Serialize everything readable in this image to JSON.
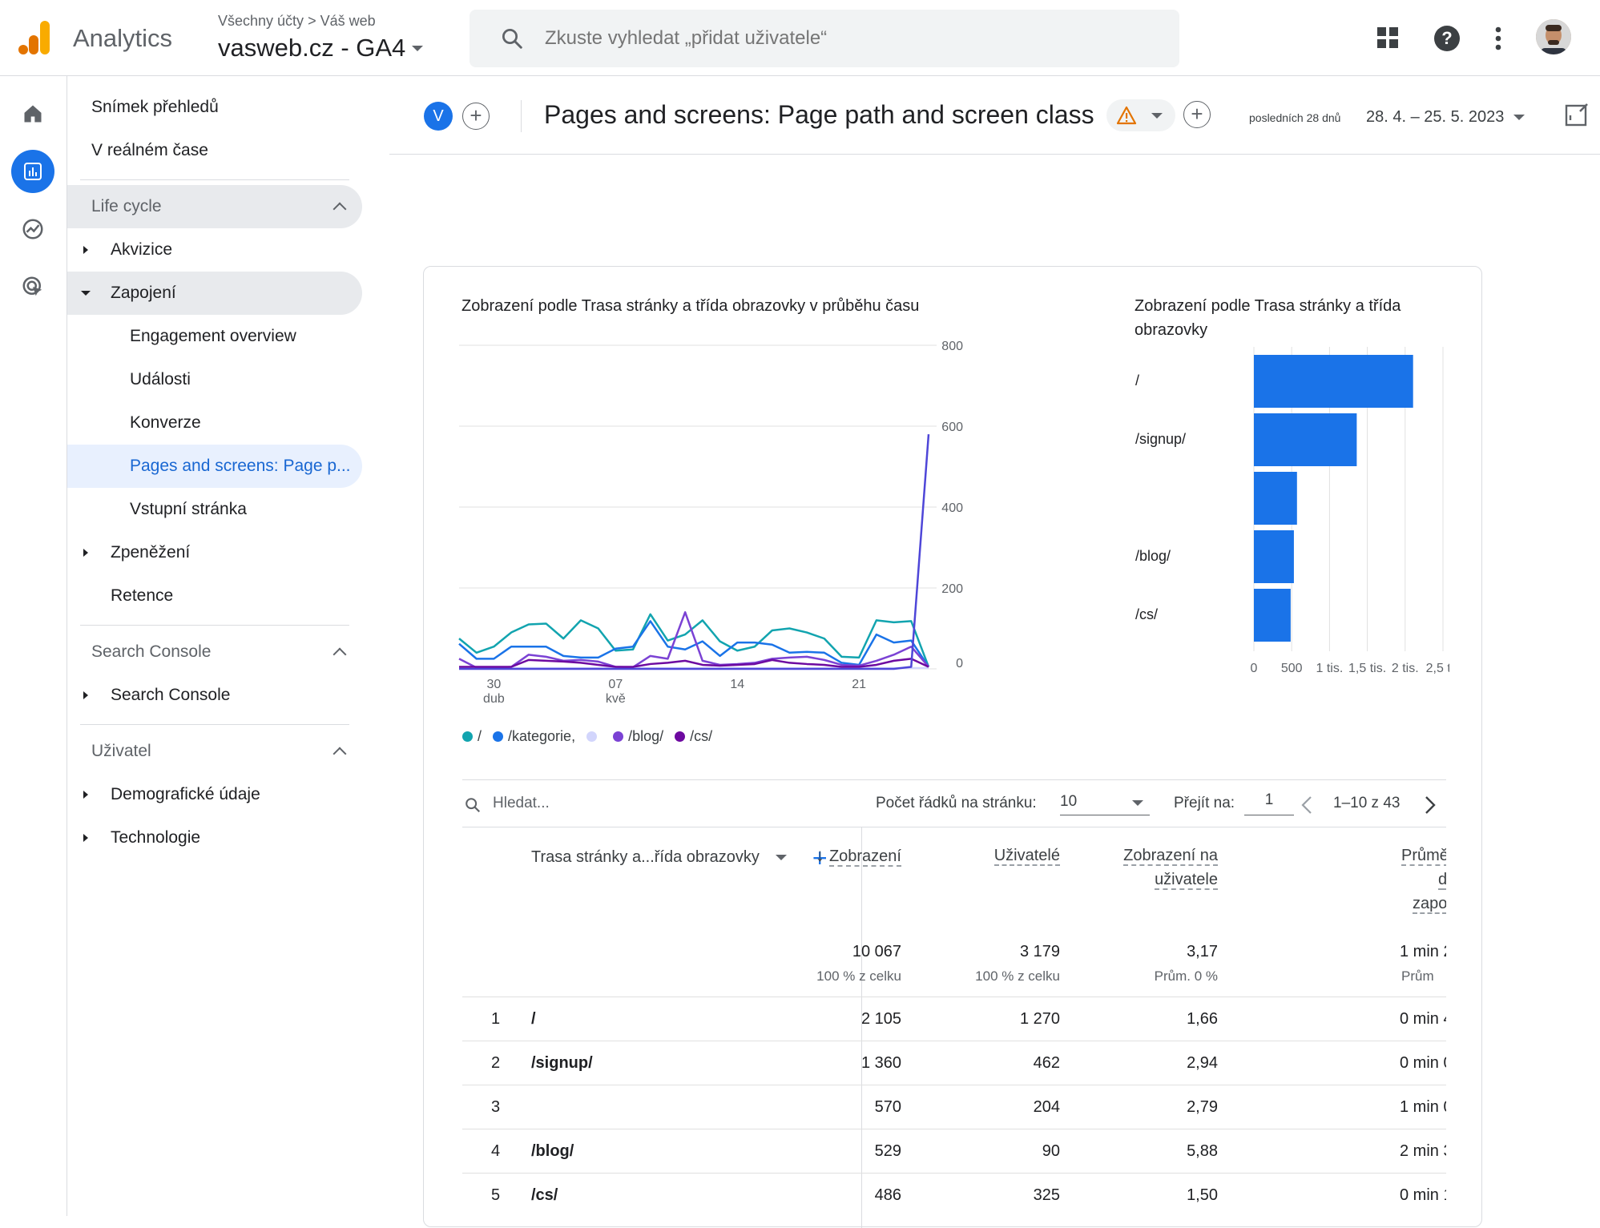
{
  "app": {
    "name": "Analytics",
    "breadcrumb_accounts": "Všechny účty",
    "breadcrumb_site": "Váš web",
    "property": "vasweb.cz - GA4",
    "search_placeholder": "Zkuste vyhledat „přidat uživatele“"
  },
  "icons": {
    "apps": "apps-grid-icon",
    "help": "help-icon",
    "more": "more-vert-icon",
    "home": "home-icon",
    "reports": "bar-chart-icon",
    "explore": "explore-icon",
    "advertising": "advertising-icon"
  },
  "colors": {
    "accent": "#1a73e8",
    "logo_orange": "#f9ab00",
    "logo_dark": "#e37400",
    "warning": "#e37400"
  },
  "nav": {
    "snapshot": "Snímek přehledů",
    "realtime": "V reálném čase",
    "lifecycle": "Life cycle",
    "acquisition": "Akvizice",
    "engagement": "Zapojení",
    "engagement_overview": "Engagement overview",
    "events": "Události",
    "conversions": "Konverze",
    "pages_screens": "Pages and screens: Page p...",
    "landing": "Vstupní stránka",
    "monetization": "Zpeněžení",
    "retention": "Retence",
    "search_console_section": "Search Console",
    "search_console": "Search Console",
    "user_section": "Uživatel",
    "demographics": "Demografické údaje",
    "tech": "Technologie"
  },
  "header": {
    "comparison_chip": "V",
    "title": "Pages and screens: Page path and screen class",
    "date_label": "posledních 28 dnů",
    "date_range": "28. 4. – 25. 5. 2023"
  },
  "line_chart": {
    "title": "Zobrazení podle Trasa stránky a třída obrazovky v průběhu času",
    "y_ticks": [
      "800",
      "600",
      "400",
      "200",
      "0"
    ],
    "x_ticks": [
      {
        "day": "30",
        "month": "dub"
      },
      {
        "day": "07",
        "month": "kvě"
      },
      {
        "day": "14",
        "month": ""
      },
      {
        "day": "21",
        "month": ""
      }
    ],
    "legend": [
      {
        "label": "/",
        "color": "#12a4af"
      },
      {
        "label": "/kategorie,",
        "color": "#1a73e8"
      },
      {
        "label": "",
        "color": "#d2d5fc"
      },
      {
        "label": "/blog/",
        "color": "#7b42d4"
      },
      {
        "label": "/cs/",
        "color": "#6d09a0"
      }
    ]
  },
  "bar_chart": {
    "title": "Zobrazení podle Trasa stránky a třída obrazovky",
    "x_ticks": [
      "0",
      "500",
      "1 tis.",
      "1,5 tis.",
      "2 tis.",
      "2,5 tis"
    ],
    "row_labels": [
      "/",
      "/signup/",
      "",
      "/blog/",
      "/cs/"
    ]
  },
  "chart_data": [
    {
      "type": "line",
      "title": "Zobrazení podle Trasa stránky a třída obrazovky v průběhu času",
      "x": [
        "2023-04-28",
        "2023-04-29",
        "2023-04-30",
        "2023-05-01",
        "2023-05-02",
        "2023-05-03",
        "2023-05-04",
        "2023-05-05",
        "2023-05-06",
        "2023-05-07",
        "2023-05-08",
        "2023-05-09",
        "2023-05-10",
        "2023-05-11",
        "2023-05-12",
        "2023-05-13",
        "2023-05-14",
        "2023-05-15",
        "2023-05-16",
        "2023-05-17",
        "2023-05-18",
        "2023-05-19",
        "2023-05-20",
        "2023-05-21",
        "2023-05-22",
        "2023-05-23",
        "2023-05-24",
        "2023-05-25"
      ],
      "ylim": [
        0,
        800
      ],
      "series": [
        {
          "name": "/",
          "values": [
            75,
            40,
            55,
            90,
            110,
            112,
            75,
            120,
            100,
            45,
            48,
            135,
            70,
            85,
            120,
            68,
            45,
            55,
            95,
            100,
            90,
            75,
            30,
            28,
            120,
            115,
            118,
            5
          ]
        },
        {
          "name": "/kategorie,",
          "values": [
            62,
            25,
            25,
            55,
            55,
            55,
            32,
            28,
            28,
            50,
            55,
            118,
            55,
            48,
            68,
            32,
            65,
            65,
            60,
            40,
            42,
            40,
            15,
            10,
            85,
            65,
            70,
            5
          ]
        },
        {
          "name": "",
          "values": [
            2,
            2,
            2,
            2,
            2,
            2,
            2,
            2,
            2,
            2,
            2,
            2,
            2,
            2,
            2,
            2,
            2,
            2,
            2,
            2,
            2,
            2,
            2,
            2,
            2,
            2,
            2,
            2
          ]
        },
        {
          "name": "/blog/",
          "values": [
            25,
            3,
            3,
            5,
            35,
            30,
            20,
            22,
            18,
            5,
            4,
            32,
            25,
            140,
            20,
            10,
            12,
            15,
            25,
            28,
            30,
            22,
            10,
            8,
            20,
            35,
            55,
            5
          ]
        },
        {
          "name": "/cs/",
          "values": [
            5,
            5,
            5,
            5,
            22,
            20,
            18,
            15,
            10,
            5,
            5,
            12,
            15,
            20,
            10,
            8,
            10,
            12,
            22,
            15,
            12,
            10,
            5,
            5,
            10,
            20,
            25,
            5
          ]
        },
        {
          "name": "/signup/",
          "values": [
            0,
            0,
            0,
            0,
            0,
            0,
            0,
            0,
            0,
            0,
            0,
            0,
            0,
            0,
            0,
            0,
            0,
            0,
            0,
            0,
            0,
            0,
            0,
            0,
            0,
            0,
            5,
            580
          ]
        }
      ]
    },
    {
      "type": "bar",
      "title": "Zobrazení podle Trasa stránky a třída obrazovky",
      "categories": [
        "/",
        "/signup/",
        "",
        "/blog/",
        "/cs/"
      ],
      "values": [
        2105,
        1360,
        570,
        529,
        486
      ],
      "xlim": [
        0,
        2500
      ]
    }
  ],
  "toolbar": {
    "search_placeholder": "Hledat...",
    "rows_label": "Počet řádků na stránku:",
    "rows_value": "10",
    "goto_label": "Přejít na:",
    "goto_value": "1",
    "pagination": "1–10 z 43"
  },
  "table": {
    "dim_header": "Trasa stránky a...řída obrazovky",
    "h_views": "Zobrazení",
    "h_users": "Uživatelé",
    "h_vpu_1": "Zobrazení na",
    "h_vpu_2": "uživatele",
    "h_avg_1": "Průmě",
    "h_avg_2": "d",
    "h_avg_3": "zapo",
    "total_views": "10 067",
    "total_views_sub": "100 % z celku",
    "total_users": "3 179",
    "total_users_sub": "100 % z celku",
    "total_vpu": "3,17",
    "total_vpu_sub": "Prům. 0 %",
    "total_avg": "1 min 2",
    "total_avg_sub": "Prům",
    "rows": [
      {
        "idx": "1",
        "path": "/",
        "views": "2 105",
        "users": "1 270",
        "vpu": "1,66",
        "avg": "0 min 4"
      },
      {
        "idx": "2",
        "path": "/signup/",
        "views": "1 360",
        "users": "462",
        "vpu": "2,94",
        "avg": "0 min 0"
      },
      {
        "idx": "3",
        "path": "",
        "views": "570",
        "users": "204",
        "vpu": "2,79",
        "avg": "1 min 0"
      },
      {
        "idx": "4",
        "path": "/blog/",
        "views": "529",
        "users": "90",
        "vpu": "5,88",
        "avg": "2 min 3"
      },
      {
        "idx": "5",
        "path": "/cs/",
        "views": "486",
        "users": "325",
        "vpu": "1,50",
        "avg": "0 min 1"
      }
    ]
  }
}
